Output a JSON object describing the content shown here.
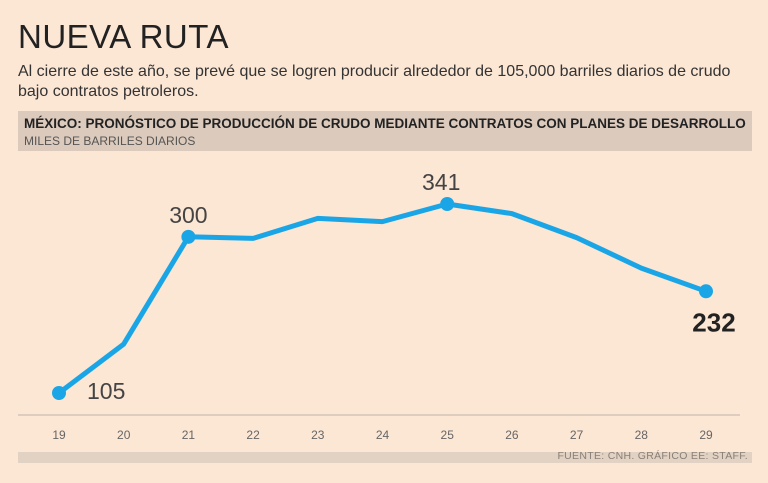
{
  "title": "NUEVA RUTA",
  "subtitle": "Al cierre de este año, se prevé que se logren producir alrededor de 105,000 barriles diarios de crudo bajo contratos petroleros.",
  "chart_header": {
    "title": "MÉXICO: PRONÓSTICO DE PRODUCCIÓN DE CRUDO MEDIANTE CONTRATOS CON PLANES DE DESARROLLO",
    "unit": "MILES DE BARRILES DIARIOS"
  },
  "source": "FUENTE: CNH. GRÁFICO EE: STAFF.",
  "colors": {
    "background": "#fce6d4",
    "line": "#1aa6e6",
    "axis": "#bfb3a8",
    "tick_text": "#666666"
  },
  "chart_data": {
    "type": "line",
    "title": "MÉXICO: PRONÓSTICO DE PRODUCCIÓN DE CRUDO MEDIANTE CONTRATOS CON PLANES DE DESARROLLO",
    "ylabel": "MILES DE BARRILES DIARIOS",
    "xlabel": "",
    "x": [
      "19",
      "20",
      "21",
      "22",
      "23",
      "24",
      "25",
      "26",
      "27",
      "28",
      "29"
    ],
    "values": [
      105,
      166,
      300,
      298,
      323,
      319,
      341,
      329,
      299,
      261,
      232
    ],
    "ylim": [
      0,
      380
    ],
    "grid": false,
    "annotations": [
      {
        "x": "19",
        "value": 105,
        "label": "105",
        "bold": false
      },
      {
        "x": "21",
        "value": 300,
        "label": "300",
        "bold": false
      },
      {
        "x": "25",
        "value": 341,
        "label": "341",
        "bold": false
      },
      {
        "x": "29",
        "value": 232,
        "label": "232",
        "bold": true
      }
    ]
  }
}
